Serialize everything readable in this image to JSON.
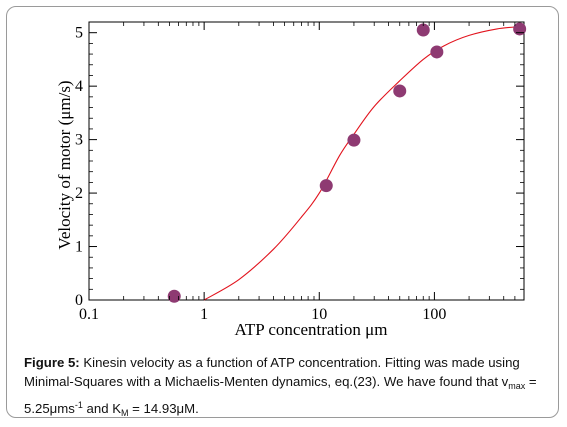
{
  "chart_data": {
    "type": "scatter",
    "xlabel": "ATP concentration μm",
    "ylabel": "Velocity of motor (μm/s)",
    "xscale": "log",
    "xlim": [
      0.1,
      600
    ],
    "ylim": [
      0,
      5.2
    ],
    "xticks": [
      {
        "value": 0.1,
        "label": "0.1"
      },
      {
        "value": 1,
        "label": "1"
      },
      {
        "value": 10,
        "label": "10"
      },
      {
        "value": 100,
        "label": "100"
      }
    ],
    "yticks": [
      {
        "value": 0,
        "label": "0"
      },
      {
        "value": 1,
        "label": "1"
      },
      {
        "value": 2,
        "label": "2"
      },
      {
        "value": 3,
        "label": "3"
      },
      {
        "value": 4,
        "label": "4"
      },
      {
        "value": 5,
        "label": "5"
      }
    ],
    "points": [
      {
        "x": 0.55,
        "y": 0.07
      },
      {
        "x": 11.5,
        "y": 2.14
      },
      {
        "x": 20,
        "y": 2.99
      },
      {
        "x": 50,
        "y": 3.91
      },
      {
        "x": 80,
        "y": 5.05
      },
      {
        "x": 105,
        "y": 4.64
      },
      {
        "x": 550,
        "y": 5.07
      }
    ],
    "fit": {
      "model": "Michaelis-Menten",
      "x_start": 1,
      "x_end": 600,
      "curve": [
        [
          1,
          0.0
        ],
        [
          2,
          0.38
        ],
        [
          4,
          0.95
        ],
        [
          7,
          1.55
        ],
        [
          10,
          2.0
        ],
        [
          15,
          2.7
        ],
        [
          20,
          3.1
        ],
        [
          30,
          3.62
        ],
        [
          50,
          4.1
        ],
        [
          80,
          4.5
        ],
        [
          120,
          4.75
        ],
        [
          200,
          4.95
        ],
        [
          350,
          5.07
        ],
        [
          600,
          5.12
        ]
      ]
    },
    "colors": {
      "point": "#8e3a72",
      "fit_line": "#e2141e",
      "axis": "#000000"
    }
  },
  "caption": {
    "label": "Figure 5:",
    "text1": " Kinesin velocity as a function of ATP concentration. Fitting was made using Minimal-Squares with a Michaelis-Menten dynamics, eq.(23). We have found that v",
    "sub1": "max",
    "text2": " = 5.25μms",
    "sup1": "-1",
    "text3": " and  K",
    "sub2": "M",
    "text4": " = 14.93μM."
  }
}
